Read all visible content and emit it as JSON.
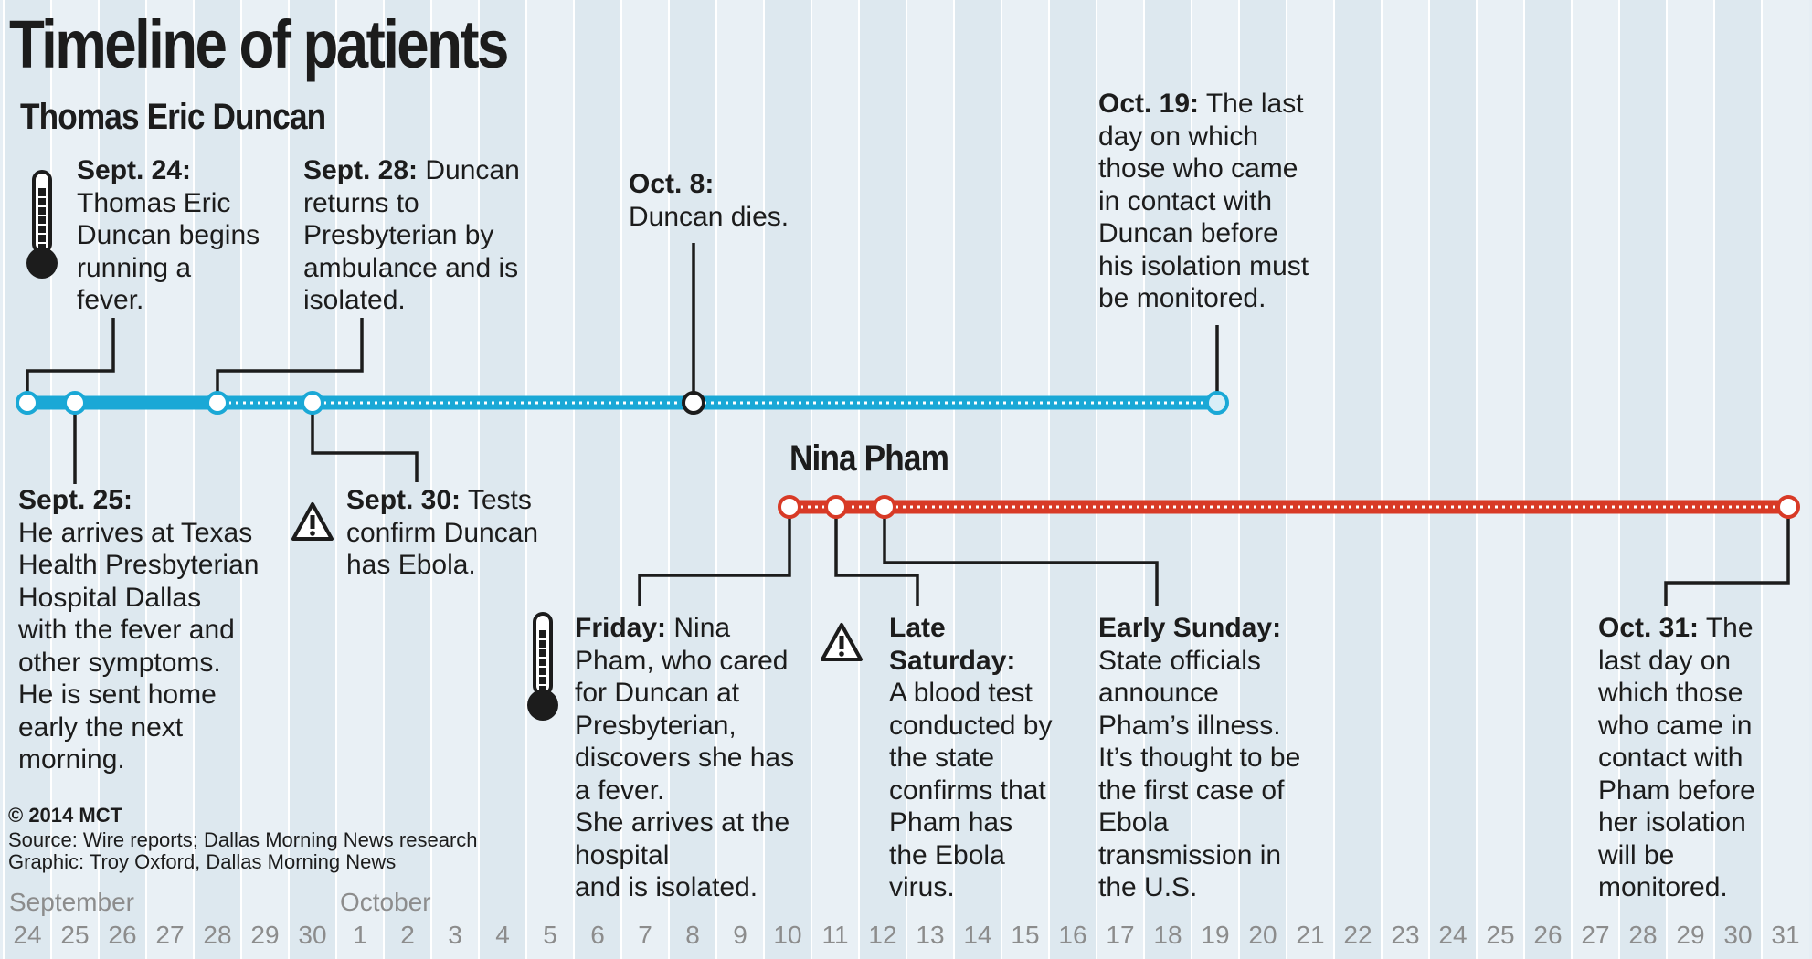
{
  "title": "Timeline of patients",
  "patients": {
    "duncan": {
      "name": "Thomas Eric Duncan",
      "color": "#1aa8d6"
    },
    "pham": {
      "name": "Nina Pham",
      "color": "#d83a26"
    }
  },
  "events": {
    "sept24": {
      "date": "Sept. 24:",
      "text": "Thomas Eric\nDuncan begins\nrunning a\nfever."
    },
    "sept28": {
      "date": "Sept. 28:",
      "text": "Duncan\nreturns to\nPresbyterian by\nambulance and is\nisolated."
    },
    "oct8": {
      "date": "Oct. 8:",
      "text": "Duncan dies."
    },
    "oct19": {
      "date": "Oct. 19:",
      "text": "The last\nday on which\nthose who came\nin contact with\nDuncan before\nhis isolation must\nbe monitored."
    },
    "sept25": {
      "date": "Sept. 25:",
      "text": "He arrives at Texas\nHealth Presbyterian\nHospital Dallas\nwith the fever and\nother symptoms.\nHe is sent home\nearly the next\nmorning."
    },
    "sept30": {
      "date": "Sept. 30:",
      "text": "Tests\nconfirm Duncan\nhas Ebola."
    },
    "friday": {
      "date": "Friday:",
      "text": "Nina\nPham, who cared\nfor Duncan at\nPresbyterian,\ndiscovers she has\na fever.\nShe arrives at the\nhospital\nand is isolated."
    },
    "latesat": {
      "date": "Late\nSaturday:",
      "text": "A blood test\nconducted by\nthe state\nconfirms that\nPham has\nthe Ebola\nvirus."
    },
    "earlysun": {
      "date": "Early Sunday:",
      "text": "State officials\nannounce\nPham’s illness.\nIt’s thought to be\nthe first case of\nEbola\ntransmission in\nthe U.S."
    },
    "oct31": {
      "date": "Oct. 31:",
      "text": "The\nlast day on\nwhich those\nwho came in\ncontact with\nPham before\nher isolation\nwill be\nmonitored."
    }
  },
  "credits": {
    "copyright": "© 2014 MCT",
    "source": "Source: Wire reports; Dallas Morning News research",
    "graphic": "Graphic: Troy Oxford, Dallas Morning News"
  },
  "axis": {
    "months": [
      "September",
      "October"
    ],
    "days": [
      "24",
      "25",
      "26",
      "27",
      "28",
      "29",
      "30",
      "1",
      "2",
      "3",
      "4",
      "5",
      "6",
      "7",
      "8",
      "9",
      "10",
      "11",
      "12",
      "13",
      "14",
      "15",
      "16",
      "17",
      "18",
      "19",
      "20",
      "21",
      "22",
      "23",
      "24",
      "25",
      "26",
      "27",
      "28",
      "29",
      "30",
      "31"
    ]
  },
  "icons": {
    "sept24": "thermometer-icon",
    "sept30": "warning-icon",
    "friday": "thermometer-icon",
    "latesat": "warning-icon"
  }
}
